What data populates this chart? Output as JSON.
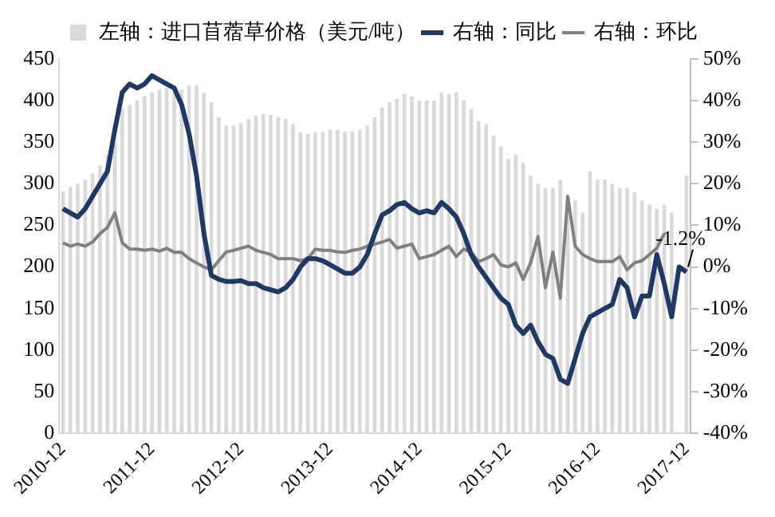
{
  "chart_data": {
    "type": "bar",
    "categories": [
      "2010-12",
      null,
      null,
      null,
      null,
      null,
      null,
      null,
      null,
      null,
      null,
      null,
      "2011-12",
      null,
      null,
      null,
      null,
      null,
      null,
      null,
      null,
      null,
      null,
      null,
      "2012-12",
      null,
      null,
      null,
      null,
      null,
      null,
      null,
      null,
      null,
      null,
      null,
      "2013-12",
      null,
      null,
      null,
      null,
      null,
      null,
      null,
      null,
      null,
      null,
      null,
      "2014-12",
      null,
      null,
      null,
      null,
      null,
      null,
      null,
      null,
      null,
      null,
      null,
      "2015-12",
      null,
      null,
      null,
      null,
      null,
      null,
      null,
      null,
      null,
      null,
      null,
      "2016-12",
      null,
      null,
      null,
      null,
      null,
      null,
      null,
      null,
      null,
      null,
      null,
      "2017-12"
    ],
    "series": [
      {
        "name": "左轴：进口苜蓿草价格（美元/吨）",
        "color": "#d9d9d9",
        "values": [
          291,
          296,
          300,
          305,
          312,
          322,
          335,
          350,
          390,
          395,
          400,
          405,
          410,
          413,
          415,
          415,
          413,
          418,
          418,
          410,
          398,
          380,
          370,
          370,
          373,
          378,
          382,
          384,
          383,
          380,
          378,
          372,
          362,
          360,
          362,
          362,
          365,
          365,
          363,
          363,
          365,
          370,
          380,
          392,
          398,
          402,
          408,
          405,
          400,
          400,
          400,
          410,
          408,
          410,
          400,
          390,
          375,
          372,
          358,
          345,
          330,
          335,
          325,
          310,
          300,
          295,
          295,
          305,
          280,
          280,
          265,
          315,
          305,
          305,
          300,
          295,
          295,
          290,
          280,
          275,
          270,
          275,
          265,
          null,
          310
        ]
      },
      {
        "name": "右轴：同比",
        "type": "line",
        "axis": "y2",
        "color": "#1f3864",
        "values": [
          14,
          13,
          12,
          14,
          17,
          20,
          23,
          33,
          42,
          44,
          43,
          44,
          46,
          45,
          44,
          43,
          39,
          32,
          22,
          8,
          -2,
          -3,
          -3.5,
          -3.5,
          -3.3,
          -4,
          -4,
          -5,
          -5.5,
          -6,
          -5,
          -3,
          0,
          2,
          2,
          1.5,
          0.5,
          -0.5,
          -1.5,
          -1.5,
          0,
          3,
          8,
          12.5,
          13.5,
          15,
          15.5,
          14,
          13,
          13.5,
          13,
          15.5,
          14,
          12,
          8,
          3,
          0,
          -2.5,
          -5,
          -7.5,
          -9,
          -14,
          -16,
          -14,
          -18,
          -21,
          -22,
          -27,
          -28,
          -22,
          -16,
          -12,
          -11,
          -10,
          -9,
          -3,
          -5,
          -12,
          -7,
          -7,
          3,
          -4,
          -12,
          0,
          -1.2
        ]
      },
      {
        "name": "右轴：环比",
        "type": "line",
        "axis": "y2",
        "color": "#808080",
        "values": [
          5.8,
          5,
          5.5,
          5,
          6,
          8,
          9.5,
          13,
          5.8,
          4.3,
          4.3,
          4,
          4.3,
          3.8,
          4.5,
          3.5,
          3.5,
          2,
          1,
          0,
          -0.7,
          1.5,
          3.6,
          4,
          4.5,
          5,
          4,
          3.5,
          3,
          2,
          2,
          2,
          1.5,
          2,
          4.3,
          4,
          4,
          3.6,
          3.5,
          4,
          4.3,
          5,
          5.5,
          6,
          6.6,
          4.5,
          5,
          5.5,
          2,
          2.5,
          3,
          4,
          5,
          2.5,
          4.3,
          3.5,
          1.3,
          2,
          3,
          0.5,
          0,
          1,
          -3,
          1,
          7.3,
          -5,
          3.6,
          -7.5,
          17,
          5,
          3,
          2,
          1.3,
          1.3,
          1.3,
          2.5,
          -0.7,
          1,
          1.5,
          3,
          4.5,
          8,
          null,
          null,
          null
        ]
      }
    ],
    "ylim": [
      0,
      450
    ],
    "yticks": [
      0,
      50,
      100,
      150,
      200,
      250,
      300,
      350,
      400,
      450
    ],
    "y2lim": [
      -40,
      50
    ],
    "y2ticks": [
      {
        "value": -40,
        "label": "-40%"
      },
      {
        "value": -30,
        "label": "-30%"
      },
      {
        "value": -20,
        "label": "-20%"
      },
      {
        "value": -10,
        "label": "-10%"
      },
      {
        "value": 0,
        "label": "0%"
      },
      {
        "value": 10,
        "label": "10%"
      },
      {
        "value": 20,
        "label": "20%"
      },
      {
        "value": 30,
        "label": "30%"
      },
      {
        "value": 40,
        "label": "40%"
      },
      {
        "value": 50,
        "label": "50%"
      }
    ],
    "annotations": [
      "-1.2%"
    ],
    "legend": "top",
    "grid": false,
    "marker": "none",
    "line_style": "solid"
  }
}
